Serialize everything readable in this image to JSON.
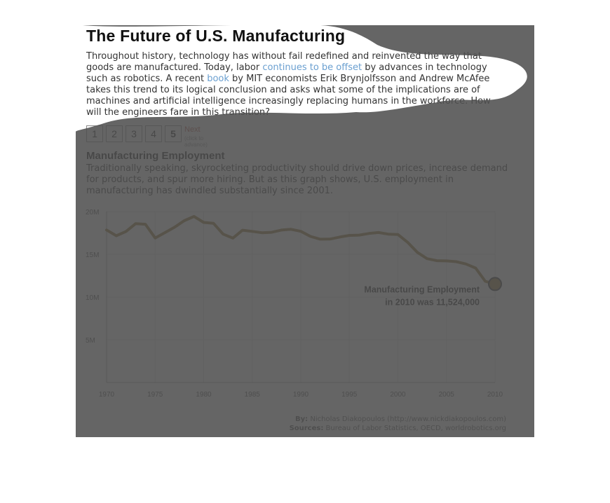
{
  "header": {
    "title": "The Future of U.S. Manufacturing",
    "intro_part1": "Throughout history, technology has without fail redefined and reinvented the way that goods are manufactured. Today, labor ",
    "intro_link1": "continues to be offset",
    "intro_part2": " by advances in technology such as robotics. A recent ",
    "intro_link2": "book",
    "intro_part3": " by MIT economists Erik Brynjolfsson and Andrew McAfee takes this trend to its logical conclusion and asks what some of the implications are of machines and artificial intelligence increasingly replacing humans in the workforce. How will the engineers fare in this transition?"
  },
  "pager": {
    "pages": [
      "1",
      "2",
      "3",
      "4",
      "5"
    ],
    "active_page": "5",
    "next_label": "Next",
    "next_hint": "(click to advance)"
  },
  "section": {
    "title": "Manufacturing Employment",
    "text": "Traditionally speaking, skyrocketing productivity should drive down prices, increase demand for products, and spur more hiring. But as this graph shows, U.S. employment in manufacturing has dwindled substantially since 2001."
  },
  "credits": {
    "by_label": "By:",
    "by_text": " Nicholas Diakopoulos (http://www.nickdiakopoulos.com)",
    "sources_label": "Sources:",
    "sources_text": " Bureau of Labor Statistics, OECD, worldrobotics.org"
  },
  "colors": {
    "line": "#8a6a20",
    "marker_fill": "#8a6a20",
    "overlay": "#505050",
    "grid": "#d9d9d9"
  },
  "chart_data": {
    "type": "line",
    "title": "Manufacturing Employment",
    "xlabel": "",
    "ylabel": "",
    "xlim": [
      1970,
      2010
    ],
    "ylim": [
      0,
      20000000
    ],
    "x_ticks": [
      1970,
      1975,
      1980,
      1985,
      1990,
      1995,
      2000,
      2005,
      2010
    ],
    "y_ticks": [
      5000000,
      10000000,
      15000000,
      20000000
    ],
    "y_tick_labels": [
      "5M",
      "10M",
      "15M",
      "20M"
    ],
    "grid": true,
    "series": [
      {
        "x": [
          1970,
          1971,
          1972,
          1973,
          1974,
          1975,
          1976,
          1977,
          1978,
          1979,
          1980,
          1981,
          1982,
          1983,
          1984,
          1985,
          1986,
          1987,
          1988,
          1989,
          1990,
          1991,
          1992,
          1993,
          1994,
          1995,
          1996,
          1997,
          1998,
          1999,
          2000,
          2001,
          2002,
          2003,
          2004,
          2005,
          2006,
          2007,
          2008,
          2009,
          2010
        ],
        "values": [
          17848000,
          17174000,
          17669000,
          18589000,
          18514000,
          16909000,
          17531000,
          18167000,
          18932000,
          19426000,
          18733000,
          18634000,
          17363000,
          16893000,
          17817000,
          17682000,
          17522000,
          17577000,
          17839000,
          17928000,
          17688000,
          17087000,
          16772000,
          16779000,
          17015000,
          17216000,
          17248000,
          17437000,
          17553000,
          17361000,
          17322000,
          16405000,
          15229000,
          14488000,
          14252000,
          14226000,
          14137000,
          13867000,
          13392000,
          11842000,
          11524000
        ]
      }
    ],
    "annotations": [
      {
        "line1": "Manufacturing Employment",
        "line2": "in 2010 was 11,524,000",
        "x": 2010,
        "y": 11524000
      }
    ]
  }
}
